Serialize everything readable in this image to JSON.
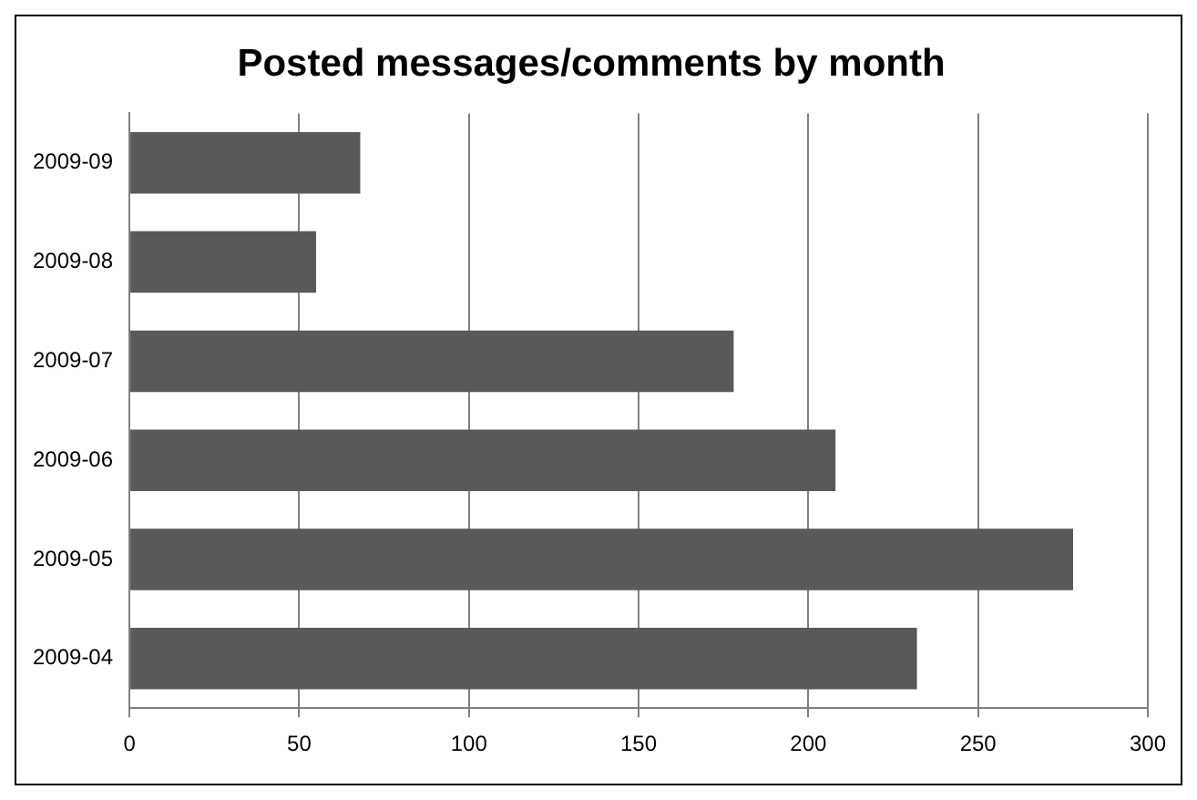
{
  "chart_data": {
    "type": "bar",
    "orientation": "horizontal",
    "title": "Posted messages/comments by month",
    "categories": [
      "2009-09",
      "2009-08",
      "2009-07",
      "2009-06",
      "2009-05",
      "2009-04"
    ],
    "values": [
      68,
      55,
      178,
      208,
      278,
      232
    ],
    "color": "#595959",
    "xlim": [
      0,
      300
    ],
    "xticks": [
      0,
      50,
      100,
      150,
      200,
      250,
      300
    ],
    "grid": "x",
    "legend": false
  }
}
